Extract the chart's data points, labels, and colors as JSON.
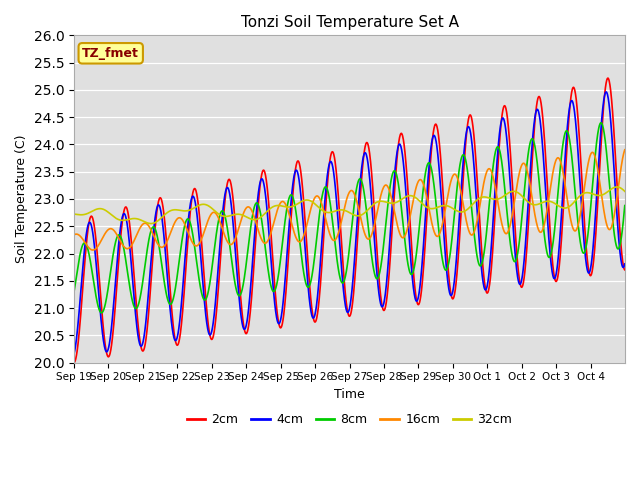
{
  "title": "Tonzi Soil Temperature Set A",
  "xlabel": "Time",
  "ylabel": "Soil Temperature (C)",
  "ylim": [
    20.0,
    26.0
  ],
  "yticks": [
    20.0,
    20.5,
    21.0,
    21.5,
    22.0,
    22.5,
    23.0,
    23.5,
    24.0,
    24.5,
    25.0,
    25.5,
    26.0
  ],
  "colors": {
    "2cm": "#ff0000",
    "4cm": "#0000ff",
    "8cm": "#00cc00",
    "16cm": "#ff8800",
    "32cm": "#cccc00"
  },
  "legend_label": "TZ_fmet",
  "legend_bbox_color": "#ffff99",
  "legend_bbox_edge": "#cc9900",
  "background_color": "#e0e0e0",
  "xtick_labels": [
    "Sep 19",
    "Sep 20",
    "Sep 21",
    "Sep 22",
    "Sep 23",
    "Sep 24",
    "Sep 25",
    "Sep 26",
    "Sep 27",
    "Sep 28",
    "Sep 29",
    "Sep 30",
    "Oct 1",
    "Oct 2",
    "Oct 3",
    "Oct 4"
  ],
  "num_days": 16,
  "samples_per_day": 144
}
